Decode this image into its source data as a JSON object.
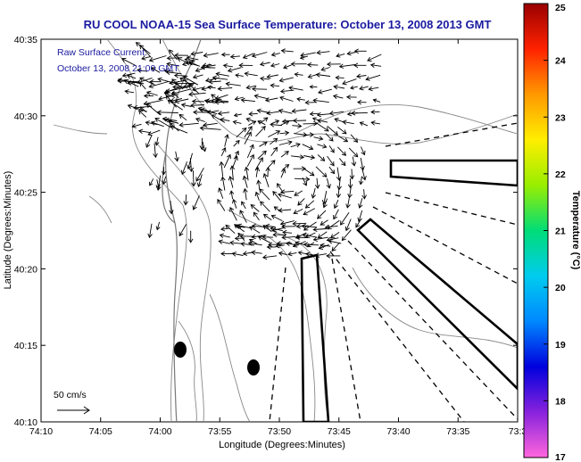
{
  "chart_data": {
    "type": "quiver",
    "title": "RU COOL  NOAA-15  Sea Surface Temperature:  October 13, 2008 2013 GMT",
    "inset_text": [
      "Raw Surface Current:",
      "October 13, 2008 21:00 GMT"
    ],
    "xlabel": "Longitude (Degrees:Minutes)",
    "ylabel": "Latitude (Degrees:Minutes)",
    "x_ticks": [
      "74:10",
      "74:05",
      "74:00",
      "73:55",
      "73:50",
      "73:45",
      "73:40",
      "73:35",
      "73:3"
    ],
    "y_ticks": [
      "40:35",
      "40:30",
      "40:25",
      "40:20",
      "40:15",
      "40:10"
    ],
    "xlim_minutes_west": [
      70,
      30
    ],
    "ylim_minutes_north": [
      10,
      35
    ],
    "scale_label": "50 cm/s",
    "colorbar": {
      "label": "Temperature (°C)",
      "min": 17,
      "max": 25,
      "ticks": [
        "17",
        "18",
        "19",
        "20",
        "21",
        "22",
        "23",
        "24",
        "25"
      ],
      "colors": [
        "#ff66dd",
        "#8822dd",
        "#0000dd",
        "#0088ff",
        "#00ccee",
        "#00dd77",
        "#99ee00",
        "#ffee00",
        "#ff9900",
        "#ff2200",
        "#990000"
      ]
    },
    "current_vectors": [
      {
        "region": "north cluster",
        "lon": "73:59",
        "lat": "40:30",
        "direction": "westward / southwestward"
      },
      {
        "region": "central gyre",
        "lon": "73:52",
        "lat": "40:25",
        "direction": "anticyclonic swirl"
      },
      {
        "region": "south edge",
        "lon": "73:52",
        "lat": "40:22",
        "direction": "westward"
      }
    ]
  },
  "colors": {
    "title": "#1a1aa0",
    "axes": "#000000",
    "contours": "#888888"
  }
}
